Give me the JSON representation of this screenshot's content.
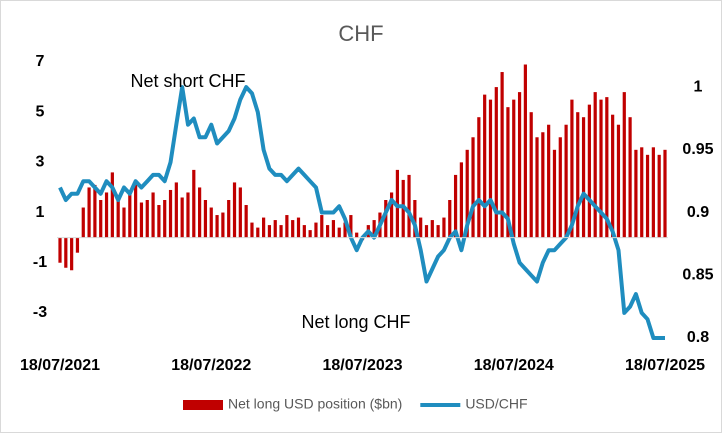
{
  "chart_data": {
    "type": "bar_line",
    "title": "CHF",
    "annotations": [
      "Net short CHF",
      "Net long CHF"
    ],
    "categories": [
      "18/07/2021",
      null,
      null,
      null,
      null,
      null,
      null,
      null,
      null,
      null,
      null,
      null,
      null,
      null,
      null,
      null,
      null,
      null,
      null,
      null,
      null,
      null,
      null,
      null,
      null,
      null,
      "18/07/2022",
      null,
      null,
      null,
      null,
      null,
      null,
      null,
      null,
      null,
      null,
      null,
      null,
      null,
      null,
      null,
      null,
      null,
      null,
      null,
      null,
      null,
      null,
      null,
      null,
      null,
      "18/07/2023",
      null,
      null,
      null,
      null,
      null,
      null,
      null,
      null,
      null,
      null,
      null,
      null,
      null,
      null,
      null,
      null,
      null,
      null,
      null,
      null,
      null,
      null,
      null,
      null,
      null,
      "18/07/2024",
      null,
      null,
      null,
      null,
      null,
      null,
      null,
      null,
      null,
      null,
      null,
      null,
      null,
      null,
      null,
      null,
      null,
      null,
      null,
      null,
      null,
      null,
      null,
      null,
      null,
      "18/07/2025"
    ],
    "series": [
      {
        "name": "Net long USD position ($bn)",
        "type": "bar",
        "color": "#c00000",
        "values": [
          -1.0,
          -1.2,
          -1.3,
          -0.6,
          1.2,
          2.0,
          2.1,
          1.5,
          1.8,
          2.6,
          1.5,
          1.2,
          1.7,
          2.2,
          1.4,
          1.5,
          1.8,
          1.3,
          1.5,
          1.9,
          2.2,
          1.6,
          1.8,
          2.7,
          2.0,
          1.5,
          1.2,
          0.9,
          1.0,
          1.5,
          2.2,
          2.0,
          1.3,
          0.6,
          0.4,
          0.8,
          0.5,
          0.7,
          0.5,
          0.9,
          0.7,
          0.8,
          0.5,
          0.3,
          0.6,
          0.9,
          0.5,
          0.7,
          0.4,
          0.6,
          0.9,
          0.2,
          -0.1,
          0.5,
          0.7,
          1.0,
          1.5,
          1.8,
          2.7,
          2.3,
          2.5,
          1.5,
          0.8,
          0.5,
          0.7,
          0.5,
          0.8,
          1.5,
          2.5,
          3.0,
          3.5,
          4.0,
          4.8,
          5.7,
          5.5,
          6.0,
          6.6,
          5.2,
          5.5,
          5.8,
          6.9,
          5.0,
          4.0,
          4.2,
          4.5,
          3.5,
          4.0,
          4.5,
          5.5,
          5.0,
          4.8,
          5.3,
          5.8,
          5.5,
          5.6,
          4.9,
          4.5,
          5.8,
          4.8,
          3.5,
          3.6,
          3.3,
          3.6,
          3.3,
          3.5
        ]
      },
      {
        "name": "USD/CHF",
        "type": "line",
        "axis": "y2",
        "color": "#1f8dbf",
        "values": [
          0.92,
          0.91,
          0.915,
          0.915,
          0.925,
          0.925,
          0.92,
          0.915,
          0.925,
          0.92,
          0.91,
          0.92,
          0.915,
          0.925,
          0.92,
          0.925,
          0.93,
          0.93,
          0.925,
          0.94,
          0.97,
          1.0,
          0.97,
          0.975,
          0.96,
          0.96,
          0.97,
          0.955,
          0.96,
          0.965,
          0.975,
          0.99,
          1.0,
          0.995,
          0.98,
          0.95,
          0.935,
          0.93,
          0.93,
          0.925,
          0.93,
          0.935,
          0.93,
          0.925,
          0.92,
          0.9,
          0.9,
          0.9,
          0.905,
          0.895,
          0.88,
          0.87,
          0.88,
          0.885,
          0.88,
          0.89,
          0.9,
          0.91,
          0.905,
          0.905,
          0.9,
          0.89,
          0.87,
          0.845,
          0.855,
          0.865,
          0.87,
          0.88,
          0.885,
          0.87,
          0.89,
          0.905,
          0.91,
          0.905,
          0.91,
          0.9,
          0.9,
          0.895,
          0.875,
          0.86,
          0.855,
          0.85,
          0.845,
          0.86,
          0.87,
          0.87,
          0.875,
          0.88,
          0.89,
          0.905,
          0.915,
          0.91,
          0.905,
          0.9,
          0.895,
          0.885,
          0.87,
          0.82,
          0.825,
          0.835,
          0.82,
          0.815,
          0.8,
          0.8,
          0.8
        ]
      }
    ],
    "ylim": [
      -4,
      7
    ],
    "yticks": [
      -3,
      -1,
      1,
      3,
      5,
      7
    ],
    "y2lim": [
      0.8,
      1.02
    ],
    "y2ticks": [
      0.8,
      0.85,
      0.9,
      0.95,
      1
    ],
    "legend": "bottom"
  }
}
